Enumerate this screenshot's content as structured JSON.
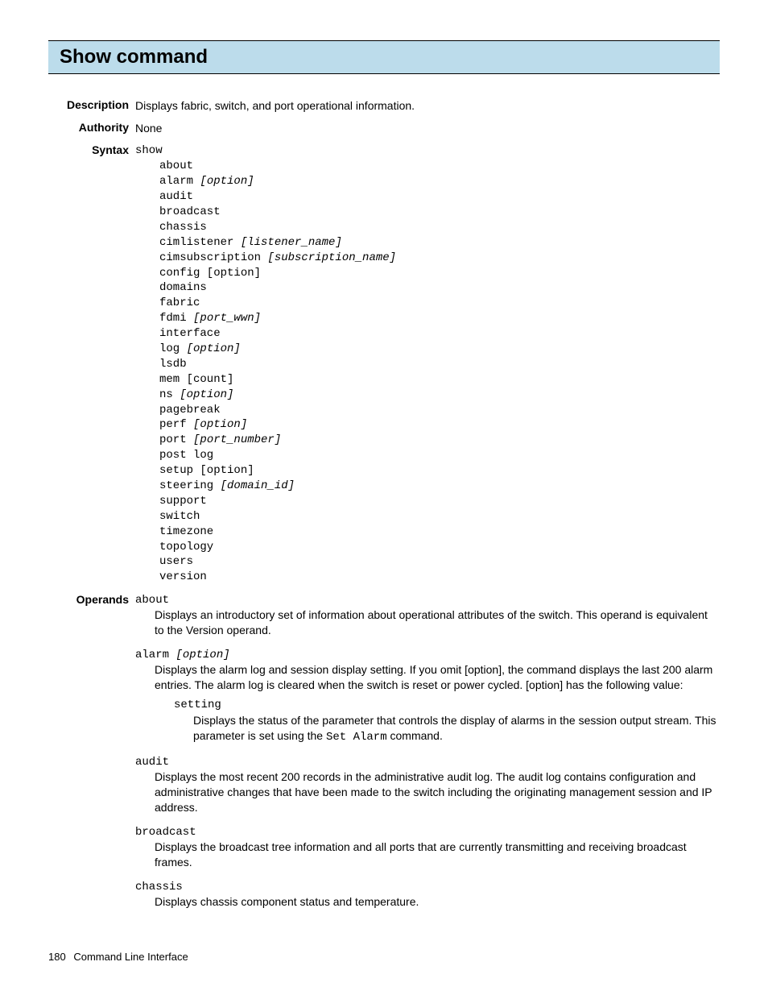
{
  "title": "Show command",
  "description_label": "Description",
  "description_text": "Displays fabric, switch, and port operational information.",
  "authority_label": "Authority",
  "authority_text": "None",
  "syntax_label": "Syntax",
  "syntax": {
    "root": "show",
    "items": [
      {
        "cmd": "about"
      },
      {
        "cmd": "alarm ",
        "opt": "[option]"
      },
      {
        "cmd": "audit"
      },
      {
        "cmd": "broadcast"
      },
      {
        "cmd": "chassis"
      },
      {
        "cmd": "cimlistener ",
        "opt": "[listener_name]"
      },
      {
        "cmd": "cimsubscription ",
        "opt": "[subscription_name]"
      },
      {
        "cmd": "config [option]"
      },
      {
        "cmd": "domains"
      },
      {
        "cmd": "fabric"
      },
      {
        "cmd": "fdmi ",
        "opt": "[port_wwn]"
      },
      {
        "cmd": "interface"
      },
      {
        "cmd": "log ",
        "opt": "[option]"
      },
      {
        "cmd": "lsdb"
      },
      {
        "cmd": "mem [count]"
      },
      {
        "cmd": "ns ",
        "opt": "[option]"
      },
      {
        "cmd": "pagebreak"
      },
      {
        "cmd": "perf ",
        "opt": "[option]"
      },
      {
        "cmd": "port ",
        "opt": "[port_number]"
      },
      {
        "cmd": "post log"
      },
      {
        "cmd": "setup [option]"
      },
      {
        "cmd": "steering ",
        "opt": "[domain_id]"
      },
      {
        "cmd": "support"
      },
      {
        "cmd": "switch"
      },
      {
        "cmd": "timezone"
      },
      {
        "cmd": "topology"
      },
      {
        "cmd": "users"
      },
      {
        "cmd": "version"
      }
    ]
  },
  "operands_label": "Operands",
  "operands": {
    "about": {
      "keyword": "about",
      "desc": "Displays an introductory set of information about operational attributes of the switch. This operand is equivalent to the Version operand."
    },
    "alarm": {
      "keyword": "alarm ",
      "keyword_opt": "[option]",
      "desc": "Displays the alarm log and session display setting. If you omit [option], the command displays the last 200 alarm entries. The alarm log is cleared when the switch is reset or power cycled. [option] has the following value:",
      "nested_keyword": "setting",
      "nested_desc_pre": "Displays the status of the parameter that controls the display of alarms in the session output stream. This parameter is set using the ",
      "nested_desc_code": "Set Alarm",
      "nested_desc_post": " command."
    },
    "audit": {
      "keyword": "audit",
      "desc": "Displays the most recent 200 records in the administrative audit log. The audit log contains configuration and administrative changes that have been made to the switch including the originating management session and IP address."
    },
    "broadcast": {
      "keyword": "broadcast",
      "desc": "Displays the broadcast tree information and all ports that are currently transmitting and receiving broadcast frames."
    },
    "chassis": {
      "keyword": "chassis",
      "desc": "Displays chassis component status and temperature."
    }
  },
  "footer": {
    "page": "180",
    "text": "Command Line Interface"
  }
}
